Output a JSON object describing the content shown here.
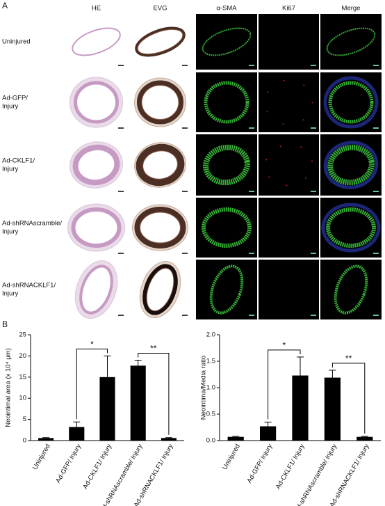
{
  "panel_a": {
    "label": "A",
    "columns": [
      "HE",
      "EVG",
      "α-SMA",
      "Ki67",
      "Merge"
    ],
    "rows": [
      [
        "Uninjured"
      ],
      [
        "Ad-GFP/",
        "Injury"
      ],
      [
        "Ad-CKLF1/",
        "Injury"
      ],
      [
        "Ad-shRNAscramble/",
        "Injury"
      ],
      [
        "Ad-shRNACKLF1/",
        "Injury"
      ]
    ]
  },
  "panel_b": {
    "label": "B"
  },
  "chart_data": [
    {
      "type": "bar",
      "y_label": "Neointimal area (x 10⁴ μm)",
      "categories": [
        "Uninjured",
        "Ad-GFP/ Injury",
        "Ad-CKLF1/ Injury",
        "Ad-shRNAscramble/ Injury",
        "Ad-shRNACKLF1/ Injury"
      ],
      "values": [
        0.6,
        3.2,
        15.0,
        17.7,
        0.6
      ],
      "errors": [
        0.1,
        1.2,
        5.0,
        1.3,
        0.1
      ],
      "color": "#000000",
      "ylim": [
        0,
        25
      ],
      "yticks": [
        0,
        5,
        10,
        15,
        20,
        25
      ],
      "annotations": [
        {
          "label": "*",
          "between": [
            "Ad-GFP/ Injury",
            "Ad-CKLF1/ Injury"
          ]
        },
        {
          "label": "**",
          "between": [
            "Ad-shRNAscramble/ Injury",
            "Ad-shRNACKLF1/ Injury"
          ]
        }
      ]
    },
    {
      "type": "bar",
      "y_label": "Neointima/Media ratio",
      "categories": [
        "Uninjured",
        "Ad-GFP/ Injury",
        "Ad-CKLF1/ Injury",
        "Ad-shRNAscramble/ Injury",
        "Ad-shRNACKLF1/ Injury"
      ],
      "values": [
        0.07,
        0.27,
        1.23,
        1.19,
        0.07
      ],
      "errors": [
        0.01,
        0.08,
        0.35,
        0.14,
        0.01
      ],
      "color": "#000000",
      "ylim": [
        0,
        2.0
      ],
      "yticks": [
        {
          "value": 0,
          "label": "0.0"
        },
        {
          "value": 0.5,
          "label": "0.5"
        },
        {
          "value": 1.0,
          "label": "1.0"
        },
        {
          "value": 1.5,
          "label": "1.5"
        },
        {
          "value": 2.0,
          "label": "2.0"
        }
      ],
      "annotations": [
        {
          "label": "*",
          "between": [
            "Ad-GFP/ Injury",
            "Ad-CKLF1/ Injury"
          ]
        },
        {
          "label": "**",
          "between": [
            "Ad-shRNAscramble/ Injury",
            "Ad-shRNACKLF1/ Injury"
          ]
        }
      ]
    }
  ]
}
